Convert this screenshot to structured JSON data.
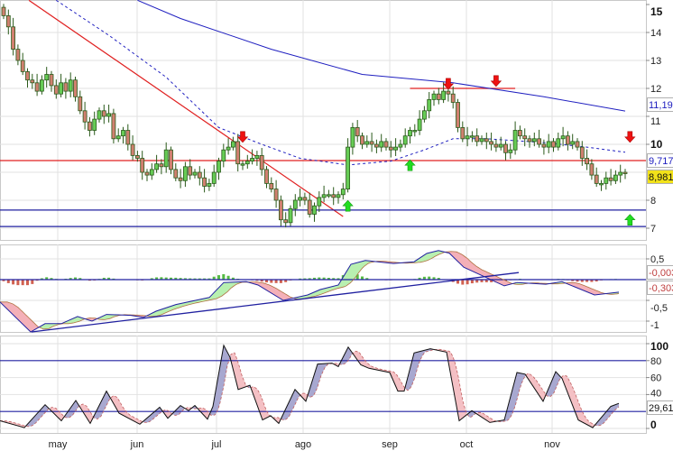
{
  "chart_data": [
    {
      "type": "candlestick",
      "panel": "price",
      "x_labels": [
        "may",
        "jun",
        "jul",
        "ago",
        "sep",
        "oct",
        "nov"
      ],
      "y_ticks": [
        "15",
        "14",
        "13",
        "12",
        "11",
        "10",
        "8",
        "7"
      ],
      "ylim": [
        7,
        15
      ],
      "grid": true,
      "closes": [
        14.6,
        14.2,
        13.4,
        13.0,
        12.6,
        12.3,
        12.2,
        11.9,
        12.3,
        12.5,
        12.1,
        11.8,
        12.2,
        11.9,
        12.3,
        11.7,
        11.2,
        10.8,
        10.5,
        10.9,
        11.2,
        11.0,
        11.1,
        10.2,
        10.3,
        10.5,
        10.0,
        9.6,
        9.5,
        9.0,
        8.9,
        9.1,
        9.3,
        9.2,
        9.8,
        9.1,
        8.8,
        8.7,
        9.2,
        8.9,
        9.0,
        8.8,
        8.5,
        8.6,
        9.0,
        9.4,
        9.8,
        9.9,
        10.1,
        9.3,
        9.3,
        9.4,
        9.5,
        9.6,
        9.1,
        8.6,
        8.4,
        8.0,
        7.3,
        7.2,
        7.7,
        8.0,
        8.1,
        8.0,
        7.5,
        7.8,
        8.1,
        8.2,
        8.2,
        8.1,
        8.2,
        8.4,
        9.9,
        10.6,
        10.3,
        10.0,
        10.1,
        10.0,
        9.9,
        10.1,
        9.9,
        9.8,
        9.9,
        10.0,
        10.3,
        10.5,
        10.5,
        10.9,
        11.2,
        11.6,
        11.8,
        11.6,
        11.9,
        11.8,
        11.5,
        10.6,
        10.2,
        10.3,
        10.3,
        10.1,
        10.2,
        10.1,
        10.0,
        9.9,
        10.0,
        9.7,
        9.8,
        10.5,
        10.3,
        10.2,
        10.1,
        10.2,
        10.0,
        9.9,
        10.1,
        9.9,
        10.2,
        10.3,
        10.0,
        10.1,
        9.9,
        9.5,
        9.3,
        8.9,
        8.6,
        8.6,
        8.8,
        8.7,
        8.9,
        9.0,
        8.98
      ],
      "ma_long": {
        "color": "#2020c0",
        "points": [
          [
            28,
            15.15
          ],
          [
            37,
            14.5
          ],
          [
            56,
            13.4
          ],
          [
            75,
            12.5
          ],
          [
            94,
            12.2
          ],
          [
            113,
            11.7
          ],
          [
            130,
            11.19
          ]
        ],
        "label": "11,19"
      },
      "ma_short": {
        "color": "#2020c0",
        "style": "dotted",
        "points": [
          [
            11,
            15.15
          ],
          [
            22,
            13.9
          ],
          [
            34,
            12.4
          ],
          [
            45,
            10.6
          ],
          [
            54,
            10.0
          ],
          [
            62,
            9.5
          ],
          [
            72,
            9.26
          ],
          [
            81,
            9.4
          ],
          [
            88,
            9.8
          ],
          [
            94,
            10.2
          ],
          [
            101,
            10.2
          ],
          [
            113,
            10.06
          ],
          [
            122,
            9.9
          ],
          [
            130,
            9.717
          ]
        ],
        "label": "9,717"
      },
      "last_price_label": "8,981",
      "lines": [
        {
          "color": "#e02020",
          "from": [
            5.3,
            15.15
          ],
          "to": [
            71,
            7.42
          ]
        },
        {
          "color": "#e02020",
          "from": [
            -1,
            9.42
          ],
          "to": [
            135,
            9.42
          ]
        },
        {
          "color": "#e02020",
          "from": [
            85,
            12.0
          ],
          "to": [
            107,
            12.0
          ]
        },
        {
          "color": "#2020a0",
          "from": [
            -1,
            7.65
          ],
          "to": [
            135,
            7.65
          ]
        },
        {
          "color": "#2020a0",
          "from": [
            -1,
            7.06
          ],
          "to": [
            135,
            7.06
          ]
        }
      ],
      "signals": [
        {
          "type": "sell",
          "idx": 50,
          "price": 10.2
        },
        {
          "type": "sell",
          "idx": 93,
          "price": 12.1
        },
        {
          "type": "sell",
          "idx": 103,
          "price": 12.2
        },
        {
          "type": "sell",
          "idx": 131,
          "price": 10.2
        },
        {
          "type": "buy",
          "idx": 72,
          "price": 7.8
        },
        {
          "type": "buy",
          "idx": 85,
          "price": 9.25
        },
        {
          "type": "buy",
          "idx": 131,
          "price": 7.3
        }
      ],
      "colors": {
        "up": "#66cc55",
        "down": "#d08070",
        "outline": "#2a5a1a"
      }
    },
    {
      "type": "line",
      "panel": "macd",
      "y_ticks": [
        "0,5",
        "-0,5",
        "-1"
      ],
      "ylim": [
        -1.3,
        0.75
      ],
      "macd_points": [
        [
          0,
          -0.54
        ],
        [
          34,
          -1.26
        ],
        [
          50,
          -1.06
        ],
        [
          68,
          -1.06
        ],
        [
          86,
          -0.89
        ],
        [
          102,
          -1.0
        ],
        [
          118,
          -0.84
        ],
        [
          145,
          -0.86
        ],
        [
          159,
          -0.91
        ],
        [
          173,
          -0.76
        ],
        [
          195,
          -0.6
        ],
        [
          232,
          -0.43
        ],
        [
          248,
          -0.07
        ],
        [
          273,
          -0.05
        ],
        [
          286,
          -0.13
        ],
        [
          314,
          -0.5
        ],
        [
          341,
          -0.37
        ],
        [
          355,
          -0.24
        ],
        [
          375,
          -0.13
        ],
        [
          389,
          0.37
        ],
        [
          405,
          0.46
        ],
        [
          436,
          0.39
        ],
        [
          459,
          0.43
        ],
        [
          473,
          0.63
        ],
        [
          486,
          0.7
        ],
        [
          498,
          0.64
        ],
        [
          514,
          0.3
        ],
        [
          559,
          -0.15
        ],
        [
          573,
          -0.07
        ],
        [
          605,
          -0.11
        ],
        [
          623,
          -0.05
        ],
        [
          659,
          -0.37
        ],
        [
          686,
          -0.303
        ]
      ],
      "trendline": {
        "from": [
          35,
          -1.26
        ],
        "to": [
          575,
          0.17
        ],
        "color": "#2020a0"
      },
      "labels": [
        "-0,003",
        "-0,303"
      ],
      "colors": {
        "hist_up": "#55bb44",
        "hist_down": "#d06050",
        "fill_up": "#b8f0b0",
        "fill_down": "#f4b0b8"
      }
    },
    {
      "type": "line",
      "panel": "stochastic",
      "y_ticks": [
        "100",
        "80",
        "60",
        "40",
        "0"
      ],
      "ylim": [
        0,
        100
      ],
      "levels": [
        80,
        20
      ],
      "k_points": [
        [
          0,
          9
        ],
        [
          27,
          1
        ],
        [
          50,
          28
        ],
        [
          68,
          9
        ],
        [
          84,
          33
        ],
        [
          100,
          6
        ],
        [
          118,
          44
        ],
        [
          132,
          18
        ],
        [
          155,
          5
        ],
        [
          177,
          25
        ],
        [
          186,
          12
        ],
        [
          200,
          27
        ],
        [
          209,
          21
        ],
        [
          216,
          27
        ],
        [
          230,
          11
        ],
        [
          236,
          26
        ],
        [
          248,
          98
        ],
        [
          255,
          84
        ],
        [
          264,
          46
        ],
        [
          277,
          51
        ],
        [
          291,
          10
        ],
        [
          300,
          15
        ],
        [
          309,
          6
        ],
        [
          327,
          46
        ],
        [
          339,
          32
        ],
        [
          352,
          76
        ],
        [
          368,
          77
        ],
        [
          375,
          73
        ],
        [
          386,
          96
        ],
        [
          400,
          75
        ],
        [
          409,
          71
        ],
        [
          432,
          66
        ],
        [
          441,
          44
        ],
        [
          448,
          44
        ],
        [
          459,
          89
        ],
        [
          477,
          94
        ],
        [
          495,
          90
        ],
        [
          509,
          9
        ],
        [
          523,
          21
        ],
        [
          543,
          7
        ],
        [
          559,
          10
        ],
        [
          573,
          66
        ],
        [
          582,
          64
        ],
        [
          602,
          32
        ],
        [
          616,
          67
        ],
        [
          623,
          59
        ],
        [
          641,
          10
        ],
        [
          657,
          1
        ],
        [
          677,
          26
        ],
        [
          686,
          29.61
        ]
      ],
      "label": "29,61",
      "colors": {
        "fill_up": "#a8a8d0",
        "fill_down": "#f4c0c4"
      }
    }
  ]
}
